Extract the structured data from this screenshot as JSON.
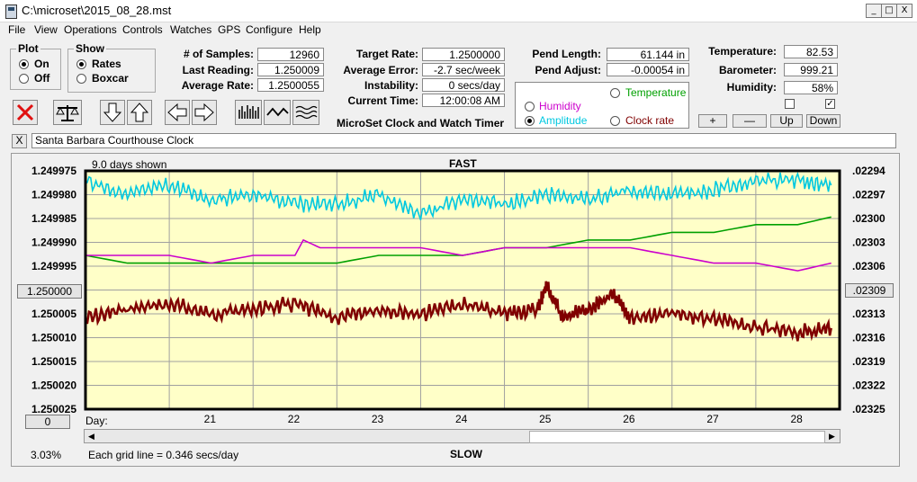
{
  "window": {
    "title": "C:\\microset\\2015_08_28.mst",
    "min": "_",
    "max": "□",
    "close": "X"
  },
  "menu": [
    "File",
    "View",
    "Operations",
    "Controls",
    "Watches",
    "GPS",
    "Configure",
    "Help"
  ],
  "plot_group": {
    "title": "Plot",
    "on": "On",
    "off": "Off",
    "selected": "On"
  },
  "show_group": {
    "title": "Show",
    "rates": "Rates",
    "boxcar": "Boxcar",
    "selected": "Rates"
  },
  "stats1": {
    "samples_label": "# of Samples:",
    "samples": "12960",
    "last_label": "Last Reading:",
    "last": "1.250009",
    "avg_label": "Average Rate:",
    "avg": "1.2500055"
  },
  "stats2": {
    "target_label": "Target Rate:",
    "target": "1.2500000",
    "err_label": "Average Error:",
    "err": "-2.7 sec/week",
    "instab_label": "Instability:",
    "instab": "0 secs/day",
    "time_label": "Current Time:",
    "time": "12:00:08 AM"
  },
  "app_caption": "MicroSet Clock and Watch Timer",
  "pend": {
    "len_label": "Pend Length:",
    "len": "61.144 in",
    "adj_label": "Pend Adjust:",
    "adj": "-0.00054 in"
  },
  "series_select": {
    "humidity": "Humidity",
    "temperature": "Temperature",
    "amplitude": "Amplitude",
    "clock_rate": "Clock rate",
    "selected": "Amplitude",
    "colors": {
      "humidity": "#cc00cc",
      "temperature": "#00a000",
      "amplitude": "#00c8e0",
      "clock_rate": "#800000"
    }
  },
  "env": {
    "temp_label": "Temperature:",
    "temp": "82.53",
    "baro_label": "Barometer:",
    "baro": "999.21",
    "hum_label": "Humidity:",
    "hum": "58%",
    "chk1": false,
    "chk2": true
  },
  "adj_buttons": {
    "plus": "+",
    "minus": "—",
    "up": "Up",
    "down": "Down"
  },
  "clock_name": "Santa Barbara Courthouse Clock",
  "clear_btn": "X",
  "chart_header": {
    "days_shown": "9.0 days shown",
    "fast": "FAST",
    "slow": "SLOW"
  },
  "footer": {
    "percent": "3.03%",
    "grid_note": "Each grid line = 0.346 secs/day",
    "day_label": "Day:"
  },
  "left_center_btn": "1.250000",
  "right_center_btn": ".02309",
  "left_bottom_btn": "0",
  "chart_data": {
    "type": "line",
    "left_axis_ticks": [
      "1.249975",
      "1.249980",
      "1.249985",
      "1.249990",
      "1.249995",
      "1.250000",
      "1.250005",
      "1.250010",
      "1.250015",
      "1.250020",
      "1.250025"
    ],
    "right_axis_ticks": [
      ".02294",
      ".02297",
      ".02300",
      ".02303",
      ".02306",
      ".02309",
      ".02313",
      ".02316",
      ".02319",
      ".02322",
      ".02325"
    ],
    "x_ticks": [
      "21",
      "22",
      "23",
      "24",
      "25",
      "26",
      "27",
      "28"
    ],
    "xlim": [
      20.0,
      29.0
    ],
    "ylim_left": [
      1.249975,
      1.250025
    ],
    "grid": true,
    "background": "#ffffc8",
    "series": [
      {
        "name": "Clock rate",
        "color": "#800000",
        "axis": "left",
        "x": [
          20.0,
          20.5,
          21.0,
          21.5,
          22.0,
          22.5,
          23.0,
          23.5,
          24.0,
          24.5,
          25.0,
          25.4,
          25.5,
          25.7,
          26.0,
          26.3,
          26.5,
          27.0,
          27.5,
          28.0,
          28.5,
          28.9
        ],
        "y": [
          1.250006,
          1.250004,
          1.250003,
          1.250005,
          1.250004,
          1.250003,
          1.250006,
          1.250004,
          1.250005,
          1.250003,
          1.250005,
          1.250004,
          1.249999,
          1.250006,
          1.250004,
          1.250001,
          1.250006,
          1.250005,
          1.250006,
          1.250008,
          1.250009,
          1.250008
        ]
      },
      {
        "name": "Amplitude",
        "color": "#00c8e0",
        "axis": "left",
        "x": [
          20.0,
          20.5,
          21.0,
          21.5,
          22.0,
          22.5,
          23.0,
          23.5,
          24.0,
          24.5,
          25.0,
          25.5,
          26.0,
          26.5,
          27.0,
          27.5,
          28.0,
          28.5,
          28.9
        ],
        "y": [
          1.249977,
          1.24998,
          1.249978,
          1.249981,
          1.24998,
          1.249982,
          1.249982,
          1.24998,
          1.249984,
          1.249981,
          1.249982,
          1.24998,
          1.249981,
          1.249979,
          1.24998,
          1.249979,
          1.249977,
          1.249977,
          1.249978
        ]
      },
      {
        "name": "Temperature",
        "color": "#00a000",
        "axis": "right",
        "x": [
          20.0,
          20.5,
          21.0,
          21.5,
          22.0,
          22.5,
          23.0,
          23.5,
          24.0,
          24.5,
          25.0,
          25.5,
          26.0,
          26.5,
          27.0,
          27.5,
          28.0,
          28.5,
          28.9
        ],
        "y": [
          0.02305,
          0.02306,
          0.02306,
          0.02306,
          0.02306,
          0.02306,
          0.02306,
          0.02305,
          0.02305,
          0.02305,
          0.02304,
          0.02304,
          0.02303,
          0.02303,
          0.02302,
          0.02302,
          0.02301,
          0.02301,
          0.023
        ]
      },
      {
        "name": "Humidity",
        "color": "#cc00cc",
        "axis": "right",
        "x": [
          20.0,
          20.5,
          21.0,
          21.5,
          22.0,
          22.5,
          22.6,
          22.8,
          23.0,
          23.5,
          24.0,
          24.5,
          25.0,
          25.5,
          26.0,
          26.5,
          27.0,
          27.5,
          28.0,
          28.5,
          28.9
        ],
        "y": [
          0.02305,
          0.02305,
          0.02305,
          0.02306,
          0.02305,
          0.02305,
          0.02303,
          0.02304,
          0.02304,
          0.02304,
          0.02304,
          0.02305,
          0.02304,
          0.02304,
          0.02304,
          0.02304,
          0.02305,
          0.02306,
          0.02306,
          0.02307,
          0.02306
        ]
      }
    ]
  }
}
